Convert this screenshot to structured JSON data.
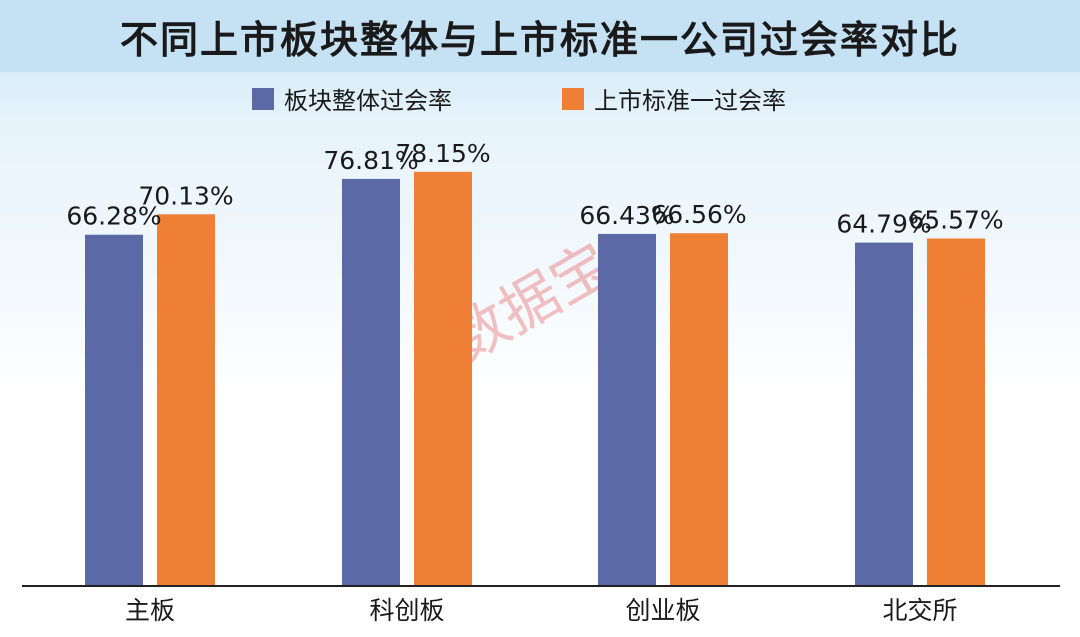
{
  "chart_data": {
    "type": "bar",
    "title": "不同上市板块整体与上市标准一公司过会率对比",
    "categories": [
      "主板",
      "科创板",
      "创业板",
      "北交所"
    ],
    "series": [
      {
        "name": "板块整体过会率",
        "color": "#5b6aa6",
        "values": [
          66.28,
          76.81,
          66.43,
          64.79
        ],
        "labels": [
          "66.28%",
          "76.81%",
          "66.43%",
          "64.79%"
        ]
      },
      {
        "name": "上市标准一过会率",
        "color": "#ef7f34",
        "values": [
          70.13,
          78.15,
          66.56,
          65.57
        ],
        "labels": [
          "70.13%",
          "78.15%",
          "66.56%",
          "65.57%"
        ]
      }
    ],
    "ylim": [
      0,
      80
    ],
    "grid": false,
    "legend": "top-center",
    "watermark": "数据宝"
  }
}
